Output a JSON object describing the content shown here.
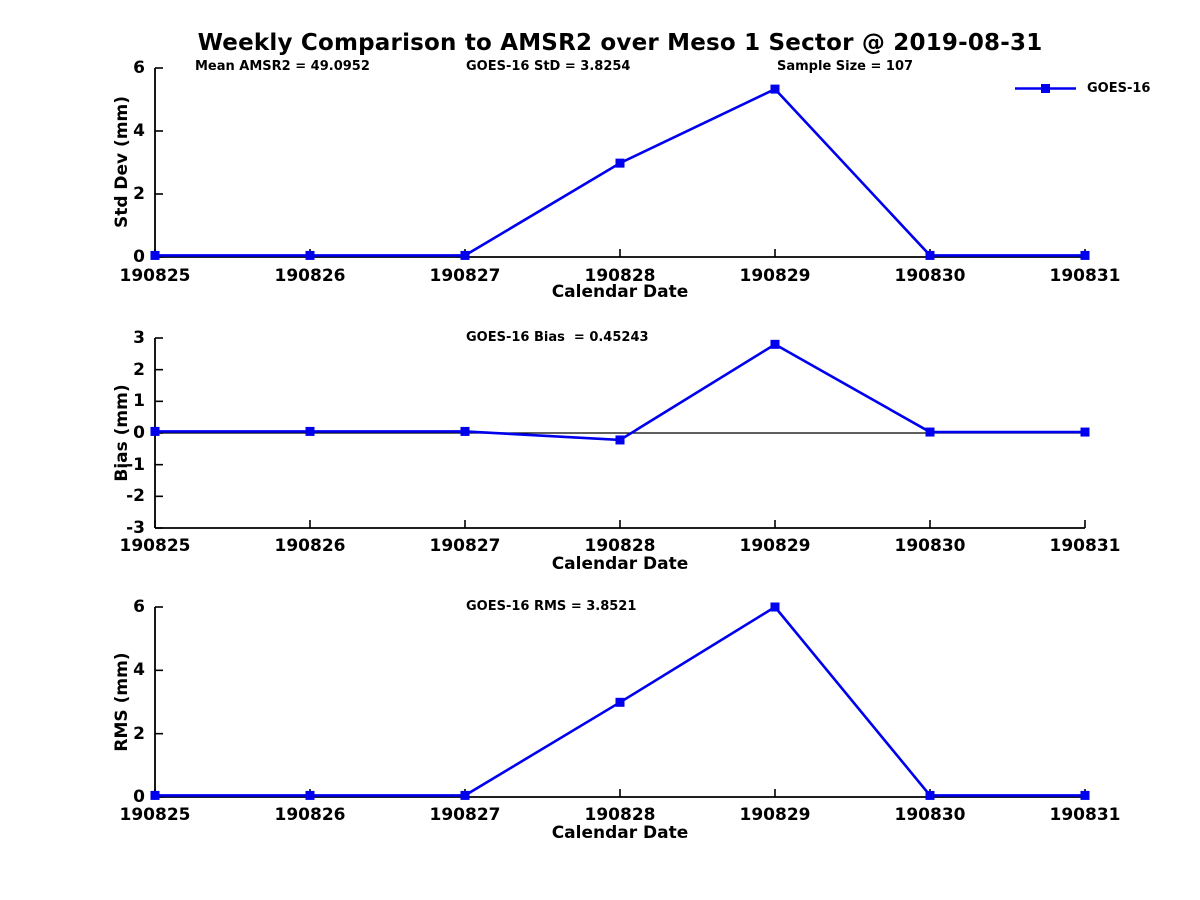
{
  "title": "Weekly Comparison to AMSR2 over Meso 1 Sector @ 2019-08-31",
  "legend": {
    "label": "GOES-16"
  },
  "colors": {
    "series": "#0000EE",
    "axis": "#000000"
  },
  "chart_data": [
    {
      "type": "line",
      "id": "std-dev",
      "title": "",
      "categories": [
        "190825",
        "190826",
        "190827",
        "190828",
        "190829",
        "190830",
        "190831"
      ],
      "series": [
        {
          "name": "GOES-16",
          "values": [
            0.05,
            0.05,
            0.05,
            2.98,
            5.33,
            0.05,
            0.05
          ]
        }
      ],
      "xlabel": "Calendar Date",
      "ylabel": "Std Dev (mm)",
      "ylim": [
        0,
        6
      ],
      "yticks": [
        0,
        2,
        4,
        6
      ],
      "grid": false,
      "legend_position": "top-right",
      "annotations": [
        "Mean AMSR2 = 49.0952",
        "GOES-16 StD = 3.8254",
        "Sample Size = 107"
      ]
    },
    {
      "type": "line",
      "id": "bias",
      "title": "",
      "categories": [
        "190825",
        "190826",
        "190827",
        "190828",
        "190829",
        "190830",
        "190831"
      ],
      "series": [
        {
          "name": "GOES-16",
          "values": [
            0.05,
            0.05,
            0.05,
            -0.22,
            2.8,
            0.03,
            0.03
          ]
        }
      ],
      "xlabel": "Calendar Date",
      "ylabel": "Bias (mm)",
      "ylim": [
        -3,
        3
      ],
      "yticks": [
        -3,
        -2,
        -1,
        0,
        1,
        2,
        3
      ],
      "grid": false,
      "zero_line": true,
      "annotations": [
        "GOES-16 Bias  = 0.45243"
      ]
    },
    {
      "type": "line",
      "id": "rms",
      "title": "",
      "categories": [
        "190825",
        "190826",
        "190827",
        "190828",
        "190829",
        "190830",
        "190831"
      ],
      "series": [
        {
          "name": "GOES-16",
          "values": [
            0.05,
            0.05,
            0.05,
            2.99,
            6.0,
            0.05,
            0.05
          ]
        }
      ],
      "xlabel": "Calendar Date",
      "ylabel": "RMS (mm)",
      "ylim": [
        0,
        6
      ],
      "yticks": [
        0,
        2,
        4,
        6
      ],
      "grid": false,
      "annotations": [
        "GOES-16 RMS = 3.8521"
      ]
    }
  ]
}
